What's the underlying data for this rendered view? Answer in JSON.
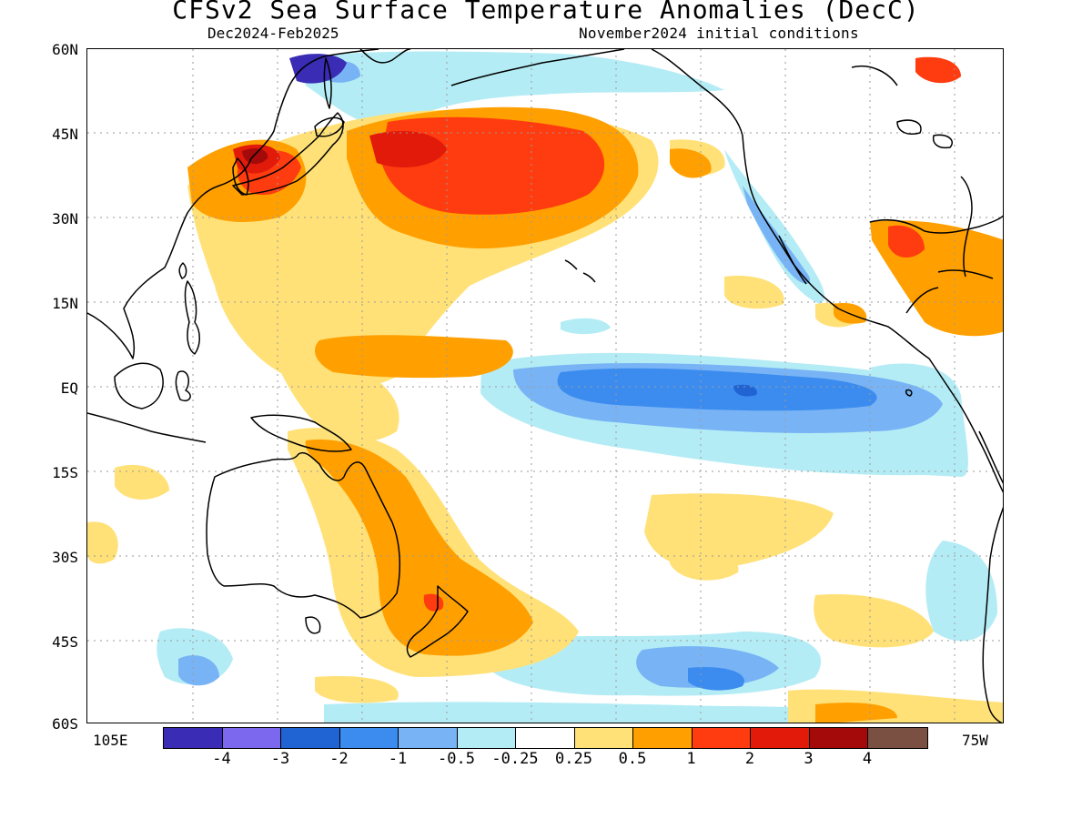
{
  "title": "CFSv2 Sea Surface Temperature Anomalies (DecC)",
  "subtitle_left": "Dec2024-Feb2025",
  "subtitle_right": "November2024 initial conditions",
  "y_axis_labels": [
    "60N",
    "45N",
    "30N",
    "15N",
    "EQ",
    "15S",
    "30S",
    "45S",
    "60S"
  ],
  "x_axis_labels": {
    "left": "105E",
    "right": "75W"
  },
  "colorbar": {
    "colors": [
      "#3a2cb5",
      "#7b68ee",
      "#1f64d2",
      "#3c8cf0",
      "#78b4f5",
      "#b4ecf5",
      "#ffffff",
      "#ffe178",
      "#ffa000",
      "#ff3c0f",
      "#e11a0a",
      "#a50a0a",
      "#7a5042"
    ],
    "labels": [
      "-4",
      "-3",
      "-2",
      "-1",
      "-0.5",
      "-0.25",
      "0.25",
      "0.5",
      "1",
      "2",
      "3",
      "4"
    ]
  }
}
